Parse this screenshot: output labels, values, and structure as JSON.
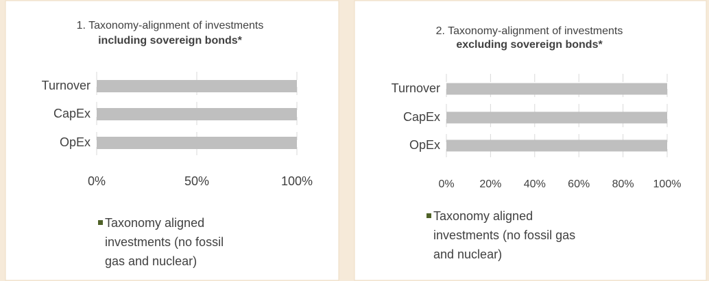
{
  "chart_data": [
    {
      "type": "stacked_bar_horizontal",
      "title": "1. Taxonomy-alignment of investments",
      "subtitle": "including sovereign bonds*",
      "categories": [
        "Turnover",
        "CapEx",
        "OpEx"
      ],
      "series": [
        {
          "name": "Taxonomy aligned investments (no fossil gas and nuclear)",
          "color": "#4f6228",
          "values": [
            0,
            0,
            0
          ],
          "value_labels": [
            "%",
            "%",
            null
          ]
        },
        {
          "color": "#bfbfbf",
          "values": [
            100,
            100,
            100
          ]
        }
      ],
      "xlim": [
        0,
        100
      ],
      "xticks": [
        {
          "value": 0,
          "label": "0%"
        },
        {
          "value": 50,
          "label": "50%"
        },
        {
          "value": 100,
          "label": "100%"
        }
      ],
      "grid": true,
      "legend": "bottom"
    },
    {
      "type": "stacked_bar_horizontal",
      "title": "2. Taxonomy-alignment of investments",
      "subtitle": "excluding sovereign bonds*",
      "categories": [
        "Turnover",
        "CapEx",
        "OpEx"
      ],
      "series": [
        {
          "name": "Taxonomy aligned investments (no fossil gas and nuclear)",
          "color": "#4f6228",
          "values": [
            0,
            0,
            0
          ],
          "value_labels": [
            "%",
            "%",
            "%"
          ]
        },
        {
          "color": "#bfbfbf",
          "values": [
            100,
            100,
            100
          ]
        }
      ],
      "xlim": [
        0,
        100
      ],
      "xticks": [
        {
          "value": 0,
          "label": "0%"
        },
        {
          "value": 20,
          "label": "20%"
        },
        {
          "value": 40,
          "label": "40%"
        },
        {
          "value": 60,
          "label": "60%"
        },
        {
          "value": 80,
          "label": "80%"
        },
        {
          "value": 100,
          "label": "100%"
        }
      ],
      "grid": true,
      "legend": "bottom"
    }
  ]
}
